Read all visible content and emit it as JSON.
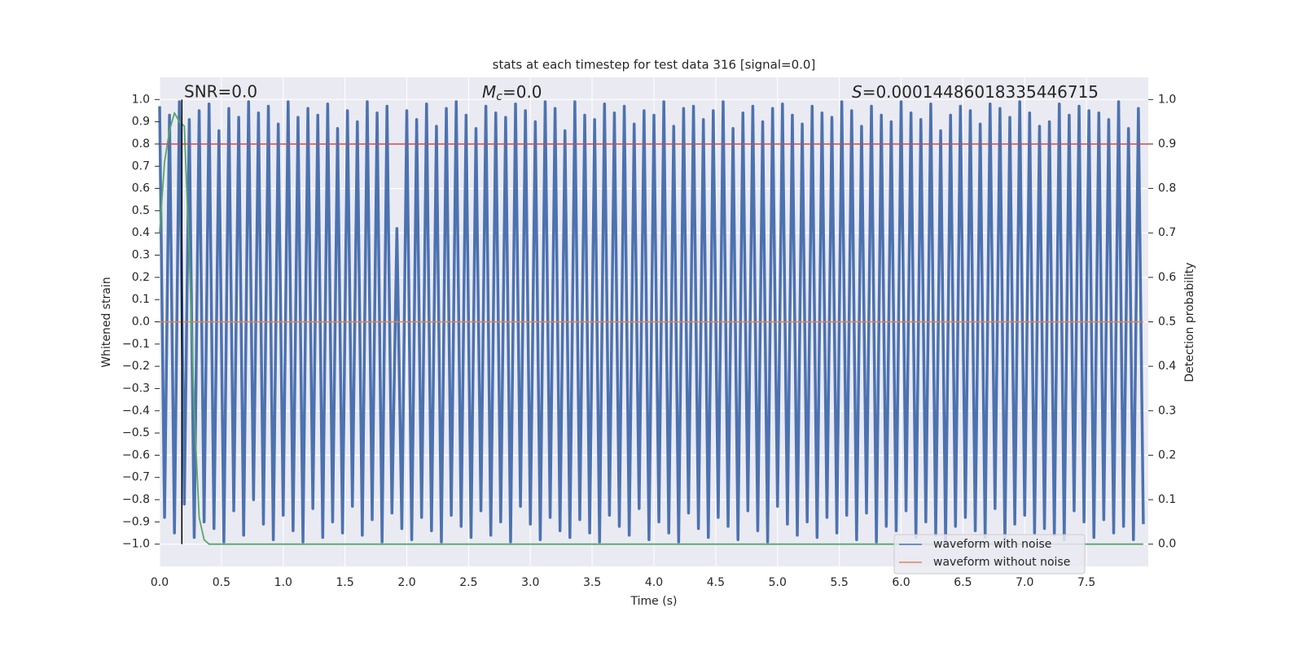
{
  "chart_data": {
    "type": "line",
    "title": "stats at each timestep for test data 316 [signal=0.0]",
    "xlabel": "Time (s)",
    "ylabel": "Whitened strain",
    "y2label": "Detection probability",
    "annotations": [
      {
        "text": "SNR=0.0"
      },
      {
        "symbol": "M",
        "subscript": "c",
        "text": "=0.0"
      },
      {
        "symbol": "S",
        "text": "=0.00014486018335446715"
      }
    ],
    "xlim": [
      0,
      8
    ],
    "ylim": [
      -1.1,
      1.1
    ],
    "y2lim": [
      -0.05,
      1.05
    ],
    "xticks": [
      {
        "value": 0,
        "label": "0.0"
      },
      0.5,
      {
        "value": 1,
        "label": "1.0"
      },
      1.5,
      {
        "value": 2,
        "label": "2.0"
      },
      2.5,
      {
        "value": 3,
        "label": "3.0"
      },
      3.5,
      {
        "value": 4,
        "label": "4.0"
      },
      4.5,
      {
        "value": 5,
        "label": "5.0"
      },
      5.5,
      {
        "value": 6,
        "label": "6.0"
      },
      6.5,
      {
        "value": 7,
        "label": "7.0"
      },
      7.5
    ],
    "yticks": [
      {
        "value": 1,
        "label": "1.0"
      },
      0.9,
      0.8,
      0.7,
      0.6,
      0.5,
      0.4,
      0.3,
      0.2,
      0.1,
      {
        "value": 0,
        "label": "0.0"
      },
      {
        "value": -0.1,
        "label": "−0.1"
      },
      {
        "value": -0.2,
        "label": "−0.2"
      },
      {
        "value": -0.3,
        "label": "−0.3"
      },
      {
        "value": -0.4,
        "label": "−0.4"
      },
      {
        "value": -0.5,
        "label": "−0.5"
      },
      {
        "value": -0.6,
        "label": "−0.6"
      },
      {
        "value": -0.7,
        "label": "−0.7"
      },
      {
        "value": -0.8,
        "label": "−0.8"
      },
      {
        "value": -0.9,
        "label": "−0.9"
      },
      {
        "value": -1,
        "label": "−1.0"
      }
    ],
    "y2ticks": [
      {
        "value": 0,
        "label": "0.0"
      },
      0.1,
      0.2,
      0.3,
      0.4,
      0.5,
      0.6,
      0.7,
      0.8,
      0.9,
      {
        "value": 1,
        "label": "1.0"
      }
    ],
    "grid": true,
    "legend": "lower right",
    "series": [
      {
        "name": "waveform with noise",
        "color": "#4c72b0",
        "x": [
          0,
          0.04,
          0.08,
          0.12,
          0.16,
          0.2,
          0.24,
          0.28,
          0.32,
          0.36,
          0.4,
          0.44,
          0.48,
          0.52,
          0.56,
          0.6,
          0.64,
          0.68,
          0.72,
          0.76,
          0.8,
          0.84,
          0.88,
          0.92,
          0.96,
          1,
          1.04,
          1.08,
          1.12,
          1.16,
          1.2,
          1.24,
          1.28,
          1.32,
          1.36,
          1.4,
          1.44,
          1.48,
          1.52,
          1.56,
          1.6,
          1.64,
          1.68,
          1.72,
          1.76,
          1.8,
          1.84,
          1.88,
          1.92,
          1.96,
          2,
          2.04,
          2.08,
          2.12,
          2.16,
          2.2,
          2.24,
          2.28,
          2.32,
          2.36,
          2.4,
          2.44,
          2.48,
          2.52,
          2.56,
          2.6,
          2.64,
          2.68,
          2.72,
          2.76,
          2.8,
          2.84,
          2.88,
          2.92,
          2.96,
          3,
          3.04,
          3.08,
          3.12,
          3.16,
          3.2,
          3.24,
          3.28,
          3.32,
          3.36,
          3.4,
          3.44,
          3.48,
          3.52,
          3.56,
          3.6,
          3.64,
          3.68,
          3.72,
          3.76,
          3.8,
          3.84,
          3.88,
          3.92,
          3.96,
          4,
          4.04,
          4.08,
          4.12,
          4.16,
          4.2,
          4.24,
          4.28,
          4.32,
          4.36,
          4.4,
          4.44,
          4.48,
          4.52,
          4.56,
          4.6,
          4.64,
          4.68,
          4.72,
          4.76,
          4.8,
          4.84,
          4.88,
          4.92,
          4.96,
          5,
          5.04,
          5.08,
          5.12,
          5.16,
          5.2,
          5.24,
          5.28,
          5.32,
          5.36,
          5.4,
          5.44,
          5.48,
          5.52,
          5.56,
          5.6,
          5.64,
          5.68,
          5.72,
          5.76,
          5.8,
          5.84,
          5.88,
          5.92,
          5.96,
          6,
          6.04,
          6.08,
          6.12,
          6.16,
          6.2,
          6.24,
          6.28,
          6.32,
          6.36,
          6.4,
          6.44,
          6.48,
          6.52,
          6.56,
          6.6,
          6.64,
          6.68,
          6.72,
          6.76,
          6.8,
          6.84,
          6.88,
          6.92,
          6.96,
          7,
          7.04,
          7.08,
          7.12,
          7.16,
          7.2,
          7.24,
          7.28,
          7.32,
          7.36,
          7.4,
          7.44,
          7.48,
          7.52,
          7.56,
          7.6,
          7.64,
          7.68,
          7.72,
          7.76,
          7.8,
          7.84,
          7.88,
          7.92,
          7.96
        ],
        "values": [
          0.97,
          -0.88,
          0.93,
          -0.95,
          0.99,
          -0.82,
          0.91,
          -0.97,
          0.95,
          -0.9,
          0.98,
          -0.93,
          0.86,
          -0.99,
          0.96,
          -0.85,
          0.92,
          -0.96,
          0.99,
          -0.8,
          0.94,
          -0.91,
          0.97,
          -0.98,
          0.89,
          -0.87,
          0.99,
          -0.94,
          0.92,
          -0.99,
          0.96,
          -0.84,
          0.93,
          -0.97,
          0.98,
          -0.9,
          0.87,
          -0.95,
          0.95,
          -0.83,
          0.9,
          -0.96,
          0.99,
          -0.89,
          0.94,
          -0.99,
          0.97,
          -0.86,
          0.42,
          -0.93,
          0.95,
          -0.98,
          0.91,
          -0.88,
          0.98,
          -0.94,
          0.88,
          -0.99,
          0.96,
          -0.87,
          0.99,
          -0.92,
          0.93,
          -0.97,
          0.87,
          -0.85,
          0.97,
          -0.96,
          0.94,
          -0.9,
          0.92,
          -0.99,
          0.98,
          -0.83,
          0.95,
          -0.91,
          0.9,
          -0.98,
          0.99,
          -0.88,
          0.96,
          -0.94,
          0.86,
          -0.97,
          0.99,
          -0.89,
          0.93,
          -0.95,
          0.91,
          -0.99,
          0.98,
          -0.87,
          0.94,
          -0.92,
          0.97,
          -0.96,
          0.89,
          -0.84,
          0.95,
          -0.98,
          0.93,
          -0.9,
          0.99,
          -0.95,
          0.88,
          -0.99,
          0.96,
          -0.86,
          0.97,
          -0.93,
          0.91,
          -0.97,
          0.95,
          -0.88,
          0.99,
          -0.92,
          0.87,
          -0.98,
          0.94,
          -0.85,
          0.97,
          -0.94,
          0.9,
          -0.99,
          0.96,
          -0.83,
          0.98,
          -0.91,
          0.93,
          -0.96,
          0.89,
          -0.9,
          0.97,
          -0.97,
          0.94,
          -0.88,
          0.92,
          -0.95,
          0.99,
          -0.87,
          0.95,
          -0.98,
          0.88,
          -0.86,
          0.97,
          -0.99,
          0.93,
          -0.92,
          0.9,
          -0.94,
          0.99,
          -0.85,
          0.94,
          -0.97,
          0.91,
          -0.9,
          0.98,
          -0.96,
          0.86,
          -0.99,
          0.93,
          -0.92,
          0.97,
          -0.88,
          0.95,
          -0.94,
          0.89,
          -0.97,
          0.98,
          -0.84,
          0.96,
          -0.99,
          0.92,
          -0.91,
          0.99,
          -0.87,
          0.94,
          -0.95,
          0.88,
          -0.93,
          0.9,
          -0.96,
          0.98,
          -0.98,
          0.93,
          -0.85,
          0.97,
          -0.9,
          0.95,
          -0.97,
          0.94,
          -0.89,
          0.91,
          -0.95,
          0.99,
          -0.92,
          0.87,
          -0.98,
          0.96,
          -0.91
        ]
      },
      {
        "name": "waveform without noise",
        "color": "#dd8452",
        "x": [
          0,
          7.96
        ],
        "values": [
          0,
          0
        ]
      }
    ],
    "probability": {
      "color": "#55a868",
      "axis": "y2",
      "x": [
        0,
        0.04,
        0.08,
        0.12,
        0.16,
        0.2,
        0.24,
        0.28,
        0.32,
        0.36,
        0.4,
        7.96
      ],
      "values": [
        0.7,
        0.86,
        0.93,
        0.97,
        0.95,
        0.94,
        0.65,
        0.3,
        0.06,
        0.01,
        0,
        0
      ]
    },
    "threshold": {
      "value": 0.9,
      "axis": "y2",
      "color": "#c44e52"
    },
    "vline": {
      "x": 0.18,
      "ymin": -1,
      "ymax": 1,
      "color": "#000000"
    }
  }
}
